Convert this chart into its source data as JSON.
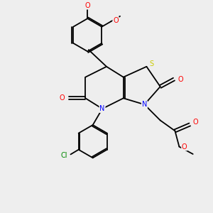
{
  "bg_color": "#eeeeee",
  "bond_color": "#000000",
  "bond_width": 1.3,
  "atom_colors": {
    "O": "#ff0000",
    "N": "#0000ff",
    "S": "#cccc00",
    "Cl": "#008800",
    "C": "#000000"
  },
  "font_size": 7.0
}
